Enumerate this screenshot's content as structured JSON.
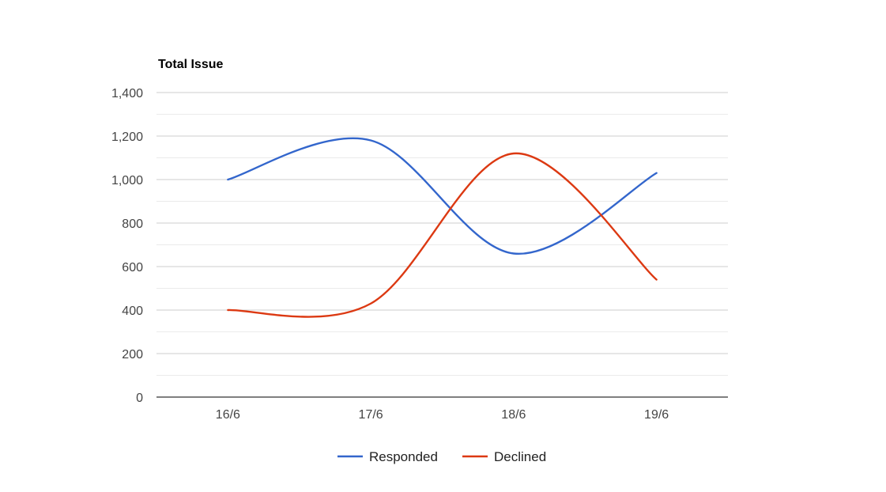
{
  "chart_data": {
    "type": "line",
    "title": "Total Issue",
    "xlabel": "",
    "ylabel": "",
    "categories": [
      "16/6",
      "17/6",
      "18/6",
      "19/6"
    ],
    "series": [
      {
        "name": "Responded",
        "values": [
          1000,
          1180,
          660,
          1030
        ],
        "color": "#3366cc"
      },
      {
        "name": "Declined",
        "values": [
          400,
          430,
          1120,
          540
        ],
        "color": "#dc3912"
      }
    ],
    "ylim": [
      0,
      1400
    ],
    "yticks": [
      0,
      200,
      400,
      600,
      800,
      1000,
      1200,
      1400
    ],
    "ytick_labels": [
      "0",
      "200",
      "400",
      "600",
      "800",
      "1,000",
      "1,200",
      "1,400"
    ],
    "grid": true,
    "minor_grid": true,
    "curve": "smooth",
    "legend_position": "bottom"
  },
  "colors": {
    "grid_major": "#cccccc",
    "grid_minor": "#ebebeb",
    "baseline": "#333333"
  }
}
